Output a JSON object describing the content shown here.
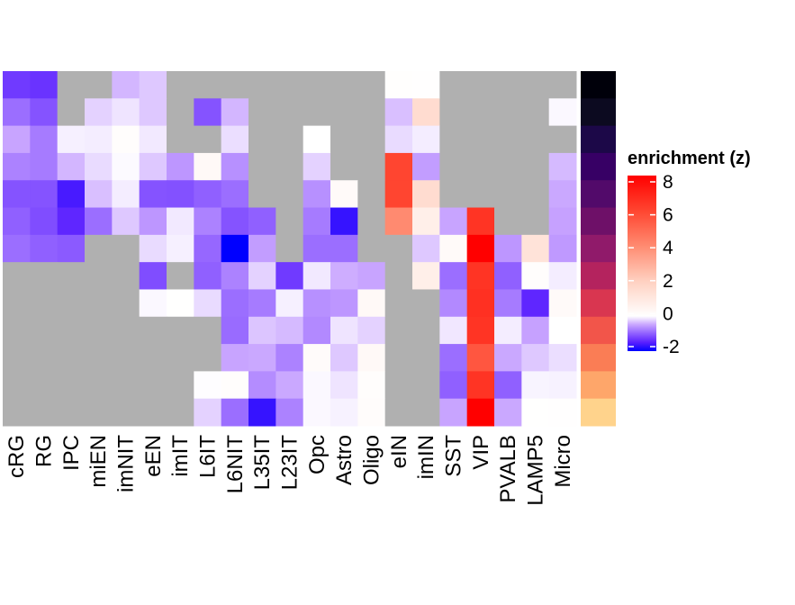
{
  "chart_data": {
    "type": "heatmap",
    "columns": [
      "cRG",
      "RG",
      "IPC",
      "miEN",
      "imNIT",
      "eEN",
      "imIT",
      "L6IT",
      "L6NIT",
      "L35IT",
      "L23IT",
      "Opc",
      "Astro",
      "Oligo",
      "eIN",
      "imIN",
      "SST",
      "VIP",
      "PVALB",
      "LAMP5",
      "Micro"
    ],
    "values": [
      [
        -1.3,
        -1.35,
        null,
        null,
        -0.4,
        -0.3,
        null,
        null,
        null,
        null,
        null,
        null,
        null,
        null,
        0.05,
        0.03,
        null,
        null,
        null,
        null,
        null
      ],
      [
        -0.9,
        -1.1,
        null,
        -0.25,
        -0.15,
        -0.3,
        null,
        -1.1,
        -0.4,
        null,
        null,
        null,
        null,
        null,
        -0.35,
        1.5,
        null,
        null,
        null,
        null,
        -0.04
      ],
      [
        -0.5,
        -0.8,
        -0.08,
        -0.1,
        0.1,
        -0.12,
        null,
        null,
        -0.18,
        null,
        null,
        0,
        null,
        null,
        -0.2,
        -0.1,
        null,
        null,
        null,
        null,
        null
      ],
      [
        -0.75,
        -0.8,
        -0.4,
        -0.2,
        -0.03,
        -0.3,
        -0.6,
        0.25,
        -0.65,
        null,
        null,
        -0.25,
        null,
        null,
        6,
        -0.55,
        null,
        null,
        null,
        null,
        -0.38
      ],
      [
        -1.1,
        -1.1,
        -1.6,
        -0.35,
        -0.1,
        -1.1,
        -1.12,
        -1.0,
        -0.9,
        null,
        null,
        -0.65,
        0.2,
        null,
        6,
        1.5,
        null,
        null,
        null,
        null,
        -0.48
      ],
      [
        -1.0,
        -1.15,
        -1.45,
        -0.9,
        -0.3,
        -0.6,
        -0.12,
        -0.75,
        -1.1,
        -1.0,
        null,
        -0.8,
        -1.7,
        null,
        4,
        0.7,
        -0.5,
        6.5,
        null,
        null,
        -0.52
      ],
      [
        -0.9,
        -1.0,
        -1.05,
        null,
        null,
        -0.2,
        -0.08,
        -0.95,
        -2.0,
        -0.55,
        null,
        -0.9,
        -0.9,
        null,
        null,
        -0.3,
        0.2,
        8,
        -0.6,
        1.2,
        -0.58
      ],
      [
        null,
        null,
        null,
        null,
        null,
        -1.15,
        null,
        -1.0,
        -0.75,
        -0.25,
        -1.3,
        -0.12,
        -0.45,
        -0.5,
        null,
        0.7,
        -0.9,
        6.5,
        -1.0,
        0.08,
        -0.1
      ],
      [
        null,
        null,
        null,
        null,
        null,
        -0.04,
        0.02,
        -0.2,
        -0.9,
        -0.8,
        -0.08,
        -0.65,
        -0.6,
        0.25,
        null,
        null,
        -0.7,
        6.6,
        -0.8,
        -1.45,
        0.2
      ],
      [
        null,
        null,
        null,
        null,
        null,
        null,
        null,
        null,
        -0.92,
        -0.32,
        -0.38,
        -0.7,
        -0.15,
        -0.25,
        null,
        null,
        -0.13,
        6.5,
        -0.1,
        -0.52,
        0
      ],
      [
        null,
        null,
        null,
        null,
        null,
        null,
        null,
        null,
        -0.5,
        -0.48,
        -0.75,
        0.15,
        -0.3,
        0.25,
        null,
        null,
        -0.9,
        5.5,
        -0.48,
        -0.3,
        -0.18
      ],
      [
        null,
        null,
        null,
        null,
        null,
        null,
        null,
        -0.01,
        0.08,
        -0.68,
        -0.48,
        -0.04,
        -0.15,
        0.1,
        null,
        null,
        -1.0,
        6.5,
        -1.0,
        -0.06,
        -0.07
      ],
      [
        null,
        null,
        null,
        null,
        null,
        null,
        null,
        -0.25,
        -0.9,
        -1.7,
        -0.75,
        -0.04,
        -0.07,
        0.12,
        null,
        null,
        -0.5,
        8,
        -0.48,
        0.02,
        0.03
      ]
    ],
    "na_color": "#b0b0b0",
    "row_annotation_colors": [
      "#00000a",
      "#0c0a20",
      "#1c0848",
      "#370065",
      "#520a6a",
      "#6e1068",
      "#901a6a",
      "#b4235e",
      "#d93650",
      "#f2554a",
      "#fa7d55",
      "#fea66a",
      "#ffd38c"
    ],
    "legend": {
      "title": "enrichment (z)",
      "ticks": [
        "8",
        "6",
        "4",
        "2",
        "0",
        "-2"
      ],
      "tick_values": [
        8,
        6,
        4,
        2,
        0,
        -2
      ],
      "range": [
        -2,
        8
      ],
      "placement": "right"
    },
    "color_scale": [
      [
        -2,
        "#0000ff"
      ],
      [
        -1.5,
        "#5a20ff"
      ],
      [
        -1,
        "#9060ff"
      ],
      [
        -0.5,
        "#c8a4ff"
      ],
      [
        0,
        "#ffffff"
      ],
      [
        2,
        "#ffd0c0"
      ],
      [
        4,
        "#ff8a70"
      ],
      [
        6,
        "#ff4530"
      ],
      [
        8,
        "#ff0000"
      ]
    ]
  }
}
